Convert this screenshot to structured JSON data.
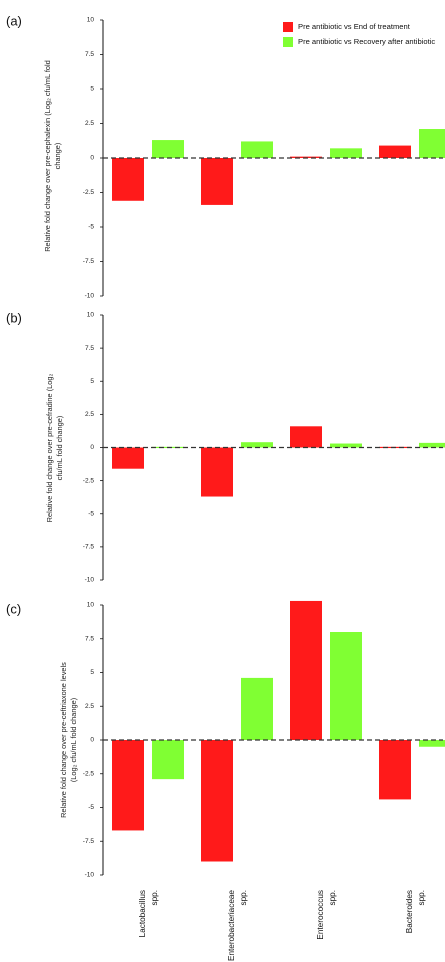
{
  "colors": {
    "series_1": "#ff1a1a",
    "series_2": "#80ff33",
    "axis": "#111111",
    "zero_line": "#333333"
  },
  "legend": {
    "items": [
      "Pre antibiotic vs End of treatment",
      "Pre antibiotic vs Recovery after antibiotic"
    ]
  },
  "chart_data": [
    {
      "type": "bar",
      "panel": "(a)",
      "ylabel_lines": [
        "Relative fold change over pre-cephalexin (Log₂ cfu/mL fold",
        "change)"
      ],
      "ylim": [
        -10,
        10
      ],
      "yticks": [
        "10",
        "7.5",
        "5",
        "2.5",
        "0",
        "-2.5",
        "-5",
        "-7.5",
        "-10"
      ],
      "categories": [
        "Lactobacillus spp.",
        "Enterobacteriaceae spp.",
        "Enterococcus spp.",
        "Bacteroides spp."
      ],
      "series": [
        {
          "name": "Pre antibiotic vs End of treatment",
          "values": [
            -3.1,
            -3.4,
            0.1,
            0.9
          ]
        },
        {
          "name": "Pre antibiotic vs Recovery after antibiotic",
          "values": [
            1.3,
            1.2,
            0.7,
            2.1
          ]
        }
      ],
      "legend_position": "top-right"
    },
    {
      "type": "bar",
      "panel": "(b)",
      "ylabel_lines": [
        "Relative fold change over pre-cefradine (Log₂",
        "cfu/mL fold change)"
      ],
      "ylim": [
        -10,
        10
      ],
      "yticks": [
        "10",
        "7.5",
        "5",
        "2.5",
        "0",
        "-2.5",
        "-5",
        "-7.5",
        "-10"
      ],
      "categories": [
        "Lactobacillus spp.",
        "Enterobacteriaceae spp.",
        "Enterococcus spp.",
        "Bacteroides spp."
      ],
      "series": [
        {
          "name": "Pre antibiotic vs End of treatment",
          "values": [
            -1.6,
            -3.7,
            1.6,
            0.05
          ]
        },
        {
          "name": "Pre antibiotic vs Recovery after antibiotic",
          "values": [
            0.05,
            0.4,
            0.3,
            0.35
          ]
        }
      ]
    },
    {
      "type": "bar",
      "panel": "(c)",
      "ylabel_lines": [
        "Relative fold change over pre-ceftriaxone levels",
        "(Log₂ cfu/mL fold change)"
      ],
      "ylim": [
        -10,
        10
      ],
      "yticks": [
        "10",
        "7.5",
        "5",
        "2.5",
        "0",
        "-2.5",
        "-5",
        "-7.5",
        "-10"
      ],
      "categories": [
        "Lactobacillus spp.",
        "Enterobacteriaceae spp.",
        "Enterococcus spp.",
        "Bacteroides spp."
      ],
      "category_lines": [
        [
          "Lactobacillus",
          "spp."
        ],
        [
          "Enterobacteriaceae",
          "spp."
        ],
        [
          "Enterococcus",
          "spp."
        ],
        [
          "Bacteroides",
          "spp."
        ]
      ],
      "series": [
        {
          "name": "Pre antibiotic vs End of treatment",
          "values": [
            -6.7,
            -9.0,
            10.3,
            -4.4
          ]
        },
        {
          "name": "Pre antibiotic vs Recovery after antibiotic",
          "values": [
            -2.9,
            4.6,
            8.0,
            -0.5
          ]
        }
      ]
    }
  ]
}
